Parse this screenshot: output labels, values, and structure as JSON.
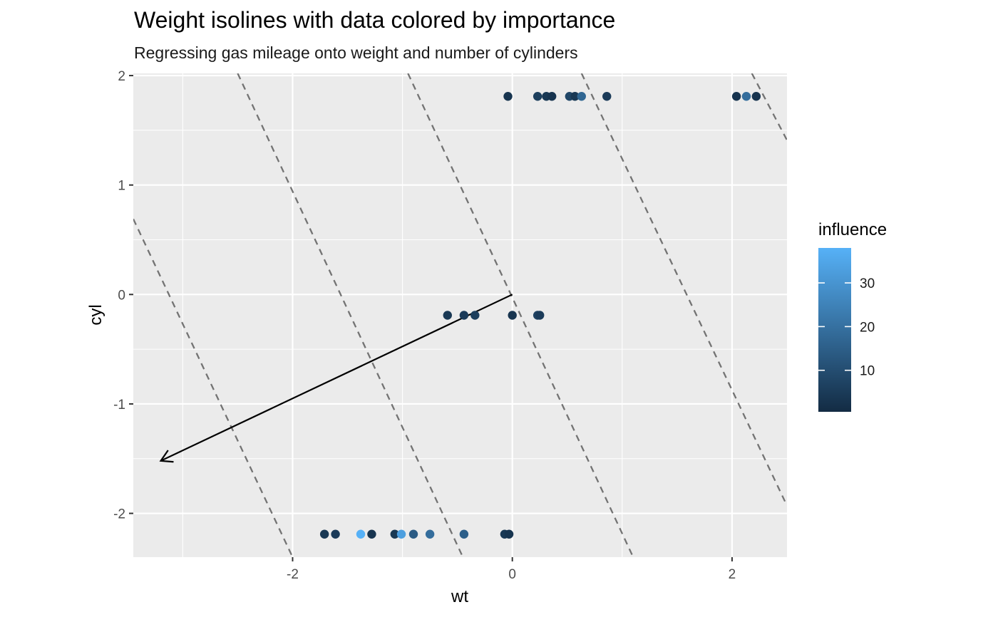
{
  "chart_data": {
    "type": "scatter",
    "title": "Weight isolines with data colored by importance",
    "subtitle": "Regressing gas mileage onto weight and number of cylinders",
    "xlabel": "wt",
    "ylabel": "cyl",
    "xlim": [
      -3.45,
      2.5
    ],
    "ylim": [
      -2.4,
      2.02
    ],
    "x_ticks": [
      -2,
      0,
      2
    ],
    "x_tick_labels": [
      "-2",
      "0",
      "2"
    ],
    "y_ticks": [
      -2,
      -1,
      0,
      1,
      2
    ],
    "y_tick_labels": [
      "-2",
      "-1",
      "0",
      "1",
      "2"
    ],
    "grid": true,
    "legend": {
      "title": "influence",
      "position": "right",
      "type": "colorbar",
      "range": [
        0.5,
        38
      ],
      "ticks": [
        10,
        20,
        30
      ],
      "tick_labels": [
        "10",
        "20",
        "30"
      ],
      "low_color": "#132B43",
      "high_color": "#56B1F7"
    },
    "points": [
      {
        "x": -0.04,
        "y": 1.81,
        "influence": 3
      },
      {
        "x": 0.23,
        "y": 1.81,
        "influence": 6
      },
      {
        "x": 0.31,
        "y": 1.81,
        "influence": 4
      },
      {
        "x": 0.36,
        "y": 1.81,
        "influence": 3
      },
      {
        "x": 0.52,
        "y": 1.81,
        "influence": 8
      },
      {
        "x": 0.57,
        "y": 1.81,
        "influence": 4
      },
      {
        "x": 0.63,
        "y": 1.81,
        "influence": 17
      },
      {
        "x": 0.86,
        "y": 1.81,
        "influence": 5
      },
      {
        "x": 2.04,
        "y": 1.81,
        "influence": 3
      },
      {
        "x": 2.13,
        "y": 1.81,
        "influence": 19
      },
      {
        "x": 2.22,
        "y": 1.81,
        "influence": 3
      },
      {
        "x": -0.59,
        "y": -0.19,
        "influence": 4
      },
      {
        "x": -0.44,
        "y": -0.19,
        "influence": 5
      },
      {
        "x": -0.34,
        "y": -0.19,
        "influence": 6
      },
      {
        "x": 0.0,
        "y": -0.19,
        "influence": 3
      },
      {
        "x": 0.23,
        "y": -0.19,
        "influence": 7
      },
      {
        "x": 0.25,
        "y": -0.19,
        "influence": 5
      },
      {
        "x": -1.71,
        "y": -2.19,
        "influence": 4
      },
      {
        "x": -1.61,
        "y": -2.19,
        "influence": 5
      },
      {
        "x": -1.38,
        "y": -2.19,
        "influence": 38
      },
      {
        "x": -1.28,
        "y": -2.19,
        "influence": 3
      },
      {
        "x": -1.07,
        "y": -2.19,
        "influence": 4
      },
      {
        "x": -1.01,
        "y": -2.19,
        "influence": 33
      },
      {
        "x": -0.9,
        "y": -2.19,
        "influence": 14
      },
      {
        "x": -0.75,
        "y": -2.19,
        "influence": 19
      },
      {
        "x": -0.44,
        "y": -2.19,
        "influence": 15
      },
      {
        "x": -0.07,
        "y": -2.19,
        "influence": 4
      },
      {
        "x": -0.03,
        "y": -2.19,
        "influence": 3
      }
    ],
    "isolines": [
      {
        "x1": -3.45,
        "y1": 0.69,
        "x2": -2.0,
        "y2": -2.4
      },
      {
        "x1": -2.5,
        "y1": 2.02,
        "x2": -0.45,
        "y2": -2.4
      },
      {
        "x1": -0.95,
        "y1": 2.02,
        "x2": 1.1,
        "y2": -2.4
      },
      {
        "x1": 0.63,
        "y1": 2.02,
        "x2": 2.5,
        "y2": -1.93
      },
      {
        "x1": 2.18,
        "y1": 2.02,
        "x2": 2.5,
        "y2": 1.41
      }
    ],
    "arrow": {
      "x1": 0,
      "y1": 0,
      "x2": -3.2,
      "y2": -1.52
    }
  }
}
